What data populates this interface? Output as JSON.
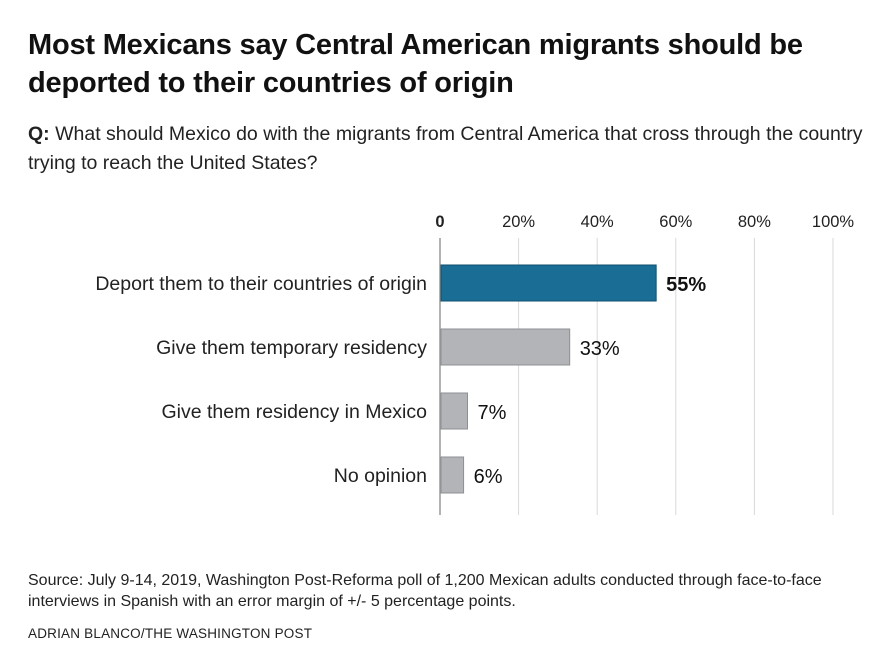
{
  "title": "Most Mexicans say Central American migrants should be deported to their countries of origin",
  "question": {
    "prefix": "Q:",
    "text": "What should Mexico do with the migrants from Central America that cross through the country trying to reach the United States?"
  },
  "source": "Source: July 9-14, 2019, Washington Post-Reforma poll of 1,200 Mexican adults conducted through face-to-face interviews in Spanish with an error margin of +/- 5 percentage points.",
  "credit": "ADRIAN BLANCO/THE WASHINGTON POST",
  "colors": {
    "highlight": "#1a6e96",
    "bar": "#b3b4b8",
    "grid": "#d9d9d9",
    "axis": "#999999"
  },
  "chart_data": {
    "type": "bar",
    "orientation": "horizontal",
    "categories": [
      "Deport them to their countries of origin",
      "Give them temporary residency",
      "Give them residency in Mexico",
      "No opinion"
    ],
    "values": [
      55,
      33,
      7,
      6
    ],
    "value_labels": [
      "55%",
      "33%",
      "7%",
      "6%"
    ],
    "highlight_index": 0,
    "xlim": [
      0,
      100
    ],
    "ticks": [
      0,
      20,
      40,
      60,
      80,
      100
    ],
    "tick_labels": [
      "0",
      "20%",
      "40%",
      "60%",
      "80%",
      "100%"
    ],
    "grid": true,
    "axis_position": "top"
  }
}
